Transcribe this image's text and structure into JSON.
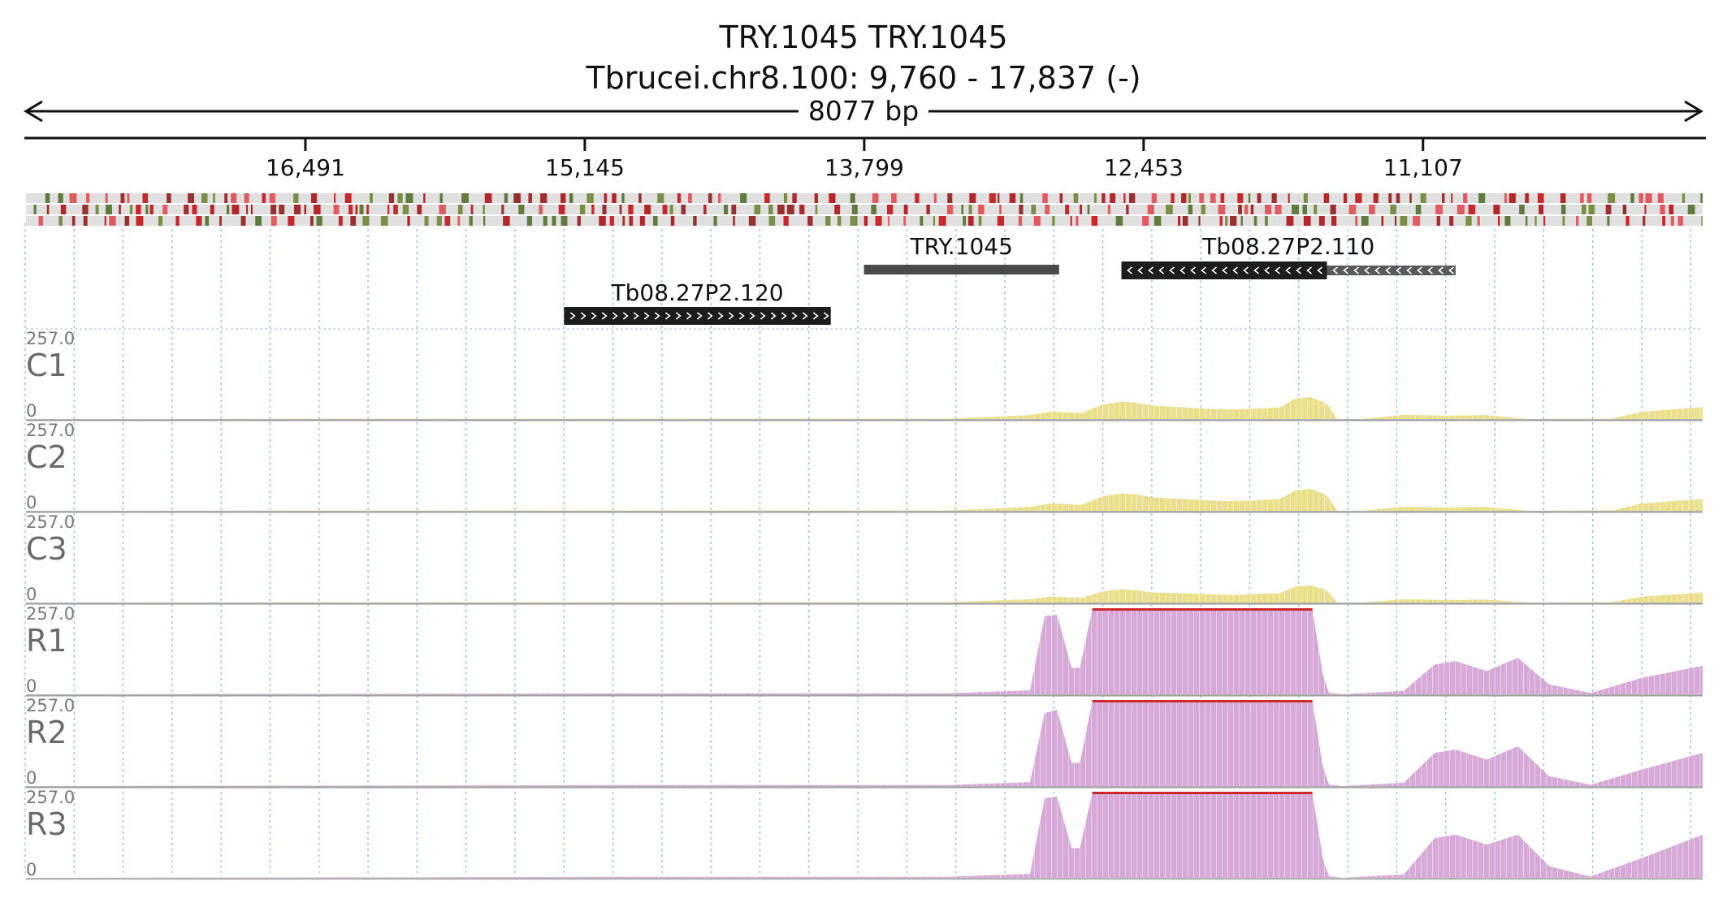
{
  "header": {
    "title": "TRY.1045  TRY.1045",
    "locus": "Tbrucei.chr8.100: 9,760 - 17,837 (-)",
    "span_label": "8077 bp"
  },
  "ruler": {
    "ticks": [
      {
        "label": "16,491",
        "value": 16491
      },
      {
        "label": "15,145",
        "value": 15145
      },
      {
        "label": "13,799",
        "value": 13799
      },
      {
        "label": "12,453",
        "value": 12453
      },
      {
        "label": "11,107",
        "value": 11107
      }
    ],
    "range": [
      9760,
      17837
    ],
    "strand": "-"
  },
  "features": [
    {
      "name": "TRY.1045",
      "start": 13800,
      "end": 12860,
      "style": "gray-bar"
    },
    {
      "name": "Tb08.27P2.110",
      "start": 12560,
      "end": 10950,
      "style": "reverse-arrows",
      "solid_until": 11570
    },
    {
      "name": "Tb08.27P2.120",
      "start": 15245,
      "end": 13960,
      "style": "forward-arrows"
    }
  ],
  "chart_data": {
    "type": "area",
    "x_axis": {
      "range": [
        17837,
        9760
      ],
      "reversed": true,
      "unit": "bp"
    },
    "tracks": [
      {
        "name": "C1",
        "max_label": "257.0",
        "min_label": "0",
        "color": "#eae08c",
        "x": [
          17837,
          14900,
          14600,
          13400,
          13000,
          12900,
          12750,
          12650,
          12560,
          12500,
          12400,
          12250,
          12100,
          12000,
          11900,
          11800,
          11720,
          11650,
          11580,
          11560,
          11520,
          11400,
          11200,
          11000,
          10800,
          10600,
          10300,
          10200,
          10050,
          9760
        ],
        "y": [
          0,
          1,
          1,
          1,
          12,
          22,
          18,
          44,
          52,
          50,
          40,
          35,
          30,
          29,
          32,
          35,
          62,
          66,
          50,
          38,
          0,
          0,
          13,
          10,
          12,
          0,
          1,
          1,
          22,
          36
        ]
      },
      {
        "name": "C2",
        "max_label": "257.0",
        "min_label": "0",
        "color": "#eae08c",
        "x": [
          17837,
          14900,
          14600,
          13400,
          13000,
          12900,
          12750,
          12650,
          12560,
          12500,
          12400,
          12250,
          12100,
          12000,
          11900,
          11800,
          11720,
          11650,
          11580,
          11560,
          11520,
          11400,
          11200,
          11000,
          10800,
          10600,
          10300,
          10200,
          10050,
          9760
        ],
        "y": [
          0,
          1,
          1,
          1,
          12,
          22,
          18,
          44,
          52,
          50,
          40,
          35,
          30,
          29,
          32,
          35,
          62,
          66,
          50,
          38,
          0,
          0,
          13,
          10,
          12,
          0,
          1,
          1,
          22,
          36
        ]
      },
      {
        "name": "C3",
        "max_label": "257.0",
        "min_label": "0",
        "color": "#eae08c",
        "x": [
          17837,
          14900,
          14600,
          13400,
          13000,
          12900,
          12750,
          12650,
          12560,
          12500,
          12400,
          12250,
          12100,
          12000,
          11900,
          11800,
          11720,
          11650,
          11580,
          11560,
          11520,
          11400,
          11200,
          11000,
          10800,
          10600,
          10300,
          10200,
          10050,
          9760
        ],
        "y": [
          0,
          1,
          1,
          1,
          10,
          18,
          14,
          34,
          40,
          38,
          30,
          28,
          24,
          23,
          26,
          28,
          48,
          52,
          40,
          30,
          0,
          0,
          10,
          8,
          9,
          0,
          1,
          1,
          18,
          30
        ]
      },
      {
        "name": "R1",
        "max_label": "257.0",
        "min_label": "0",
        "color": "#d6a9d6",
        "x": [
          17837,
          15600,
          15000,
          13400,
          13000,
          12930,
          12870,
          12800,
          12760,
          12700,
          12640,
          11640,
          11590,
          11560,
          11500,
          11200,
          11050,
          10950,
          10800,
          10650,
          10500,
          10300,
          10050,
          9760
        ],
        "y": [
          0,
          2,
          3,
          3,
          12,
          235,
          240,
          80,
          80,
          257,
          257,
          257,
          60,
          5,
          0,
          10,
          90,
          100,
          70,
          110,
          30,
          4,
          50,
          86
        ]
      },
      {
        "name": "R2",
        "max_label": "257.0",
        "min_label": "0",
        "color": "#d6a9d6",
        "x": [
          17837,
          15600,
          15000,
          13400,
          13000,
          12930,
          12870,
          12800,
          12760,
          12700,
          12640,
          11640,
          11590,
          11560,
          11500,
          11200,
          11050,
          10950,
          10800,
          10650,
          10500,
          10300,
          10050,
          9760
        ],
        "y": [
          0,
          2,
          3,
          3,
          12,
          220,
          230,
          70,
          70,
          257,
          257,
          257,
          60,
          5,
          0,
          10,
          100,
          110,
          80,
          120,
          30,
          4,
          50,
          100
        ]
      },
      {
        "name": "R3",
        "max_label": "257.0",
        "min_label": "0",
        "color": "#d6a9d6",
        "x": [
          17837,
          15600,
          15000,
          13400,
          13000,
          12930,
          12870,
          12800,
          12760,
          12700,
          12640,
          11640,
          11590,
          11560,
          11500,
          11200,
          11050,
          10950,
          10800,
          10650,
          10500,
          10300,
          10050,
          9760
        ],
        "y": [
          0,
          2,
          3,
          3,
          12,
          240,
          245,
          90,
          90,
          257,
          257,
          257,
          60,
          5,
          0,
          10,
          120,
          130,
          100,
          130,
          35,
          4,
          60,
          130
        ]
      }
    ],
    "clipped_color": "#cc2a2a",
    "grid": true,
    "legend": "none"
  }
}
